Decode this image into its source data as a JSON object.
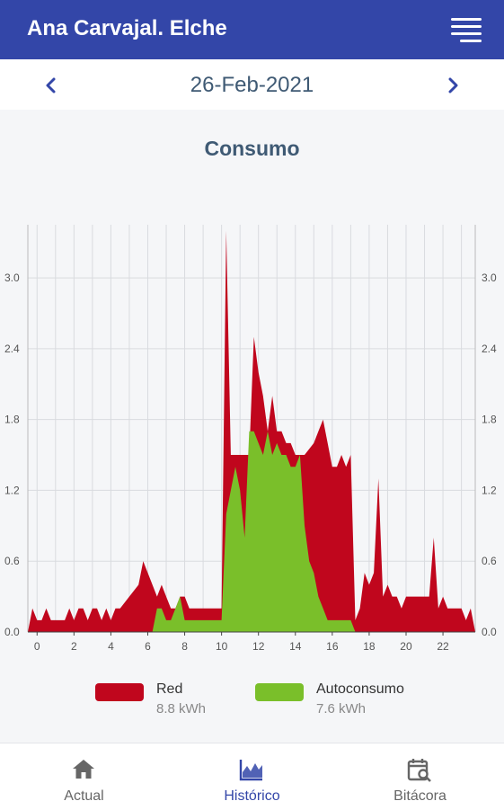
{
  "header": {
    "title": "Ana Carvajal. Elche",
    "menu_icon": "hamburger-menu-icon"
  },
  "date_nav": {
    "date": "26-Feb-2021",
    "prev_icon": "chevron-left-icon",
    "next_icon": "chevron-right-icon",
    "accent": "#3346a8"
  },
  "chart_data": {
    "type": "area",
    "title": "Consumo",
    "x_ticks": [
      "0",
      "2",
      "4",
      "6",
      "8",
      "10",
      "12",
      "14",
      "16",
      "18",
      "20",
      "22"
    ],
    "y_ticks": [
      "0.0",
      "0.6",
      "1.2",
      "1.8",
      "2.4",
      "3.0"
    ],
    "xlim": [
      -0.5,
      23.75
    ],
    "ylim": [
      0,
      3.45
    ],
    "grid": true,
    "legend_position": "bottom",
    "series": [
      {
        "name": "Red",
        "color": "#c0061d",
        "total": "8.8 kWh",
        "points": [
          [
            -0.5,
            0
          ],
          [
            -0.25,
            0.2
          ],
          [
            0,
            0.1
          ],
          [
            0.25,
            0.1
          ],
          [
            0.5,
            0.2
          ],
          [
            0.75,
            0.1
          ],
          [
            1,
            0.1
          ],
          [
            1.5,
            0.1
          ],
          [
            1.75,
            0.2
          ],
          [
            2,
            0.1
          ],
          [
            2.25,
            0.2
          ],
          [
            2.5,
            0.2
          ],
          [
            2.75,
            0.1
          ],
          [
            3,
            0.2
          ],
          [
            3.25,
            0.2
          ],
          [
            3.5,
            0.1
          ],
          [
            3.75,
            0.2
          ],
          [
            4,
            0.1
          ],
          [
            4.25,
            0.2
          ],
          [
            4.5,
            0.2
          ],
          [
            5,
            0.3
          ],
          [
            5.5,
            0.4
          ],
          [
            5.75,
            0.6
          ],
          [
            6,
            0.5
          ],
          [
            6.5,
            0.3
          ],
          [
            6.75,
            0.4
          ],
          [
            7,
            0.3
          ],
          [
            7.25,
            0.2
          ],
          [
            7.5,
            0.2
          ],
          [
            7.75,
            0.3
          ],
          [
            8,
            0.3
          ],
          [
            8.25,
            0.2
          ],
          [
            9,
            0.2
          ],
          [
            9.5,
            0.2
          ],
          [
            10,
            0.2
          ],
          [
            10.25,
            3.4
          ],
          [
            10.5,
            1.5
          ],
          [
            11,
            1.5
          ],
          [
            11.25,
            1.5
          ],
          [
            11.5,
            1.5
          ],
          [
            11.75,
            2.5
          ],
          [
            12,
            2.2
          ],
          [
            12.25,
            2.0
          ],
          [
            12.5,
            1.7
          ],
          [
            12.75,
            2.0
          ],
          [
            13,
            1.7
          ],
          [
            13.25,
            1.7
          ],
          [
            13.5,
            1.6
          ],
          [
            13.75,
            1.6
          ],
          [
            14,
            1.5
          ],
          [
            14.5,
            1.5
          ],
          [
            15,
            1.6
          ],
          [
            15.25,
            1.7
          ],
          [
            15.5,
            1.8
          ],
          [
            15.75,
            1.6
          ],
          [
            16,
            1.4
          ],
          [
            16.25,
            1.4
          ],
          [
            16.5,
            1.5
          ],
          [
            16.75,
            1.4
          ],
          [
            17,
            1.5
          ],
          [
            17.25,
            0.1
          ],
          [
            17.5,
            0.2
          ],
          [
            17.75,
            0.5
          ],
          [
            18,
            0.4
          ],
          [
            18.25,
            0.5
          ],
          [
            18.5,
            1.3
          ],
          [
            18.75,
            0.3
          ],
          [
            19,
            0.4
          ],
          [
            19.25,
            0.3
          ],
          [
            19.5,
            0.3
          ],
          [
            19.75,
            0.2
          ],
          [
            20,
            0.3
          ],
          [
            20.5,
            0.3
          ],
          [
            21,
            0.3
          ],
          [
            21.25,
            0.3
          ],
          [
            21.5,
            0.8
          ],
          [
            21.75,
            0.2
          ],
          [
            22,
            0.3
          ],
          [
            22.25,
            0.2
          ],
          [
            22.5,
            0.2
          ],
          [
            23,
            0.2
          ],
          [
            23.25,
            0.1
          ],
          [
            23.5,
            0.2
          ],
          [
            23.75,
            0
          ]
        ]
      },
      {
        "name": "Autoconsumo",
        "color": "#7abf2a",
        "total": "7.6 kWh",
        "points": [
          [
            6.25,
            0
          ],
          [
            6.5,
            0.2
          ],
          [
            6.75,
            0.2
          ],
          [
            7,
            0.1
          ],
          [
            7.25,
            0.1
          ],
          [
            7.5,
            0.2
          ],
          [
            7.75,
            0.3
          ],
          [
            8,
            0.1
          ],
          [
            8.5,
            0.1
          ],
          [
            9,
            0.1
          ],
          [
            10,
            0.1
          ],
          [
            10.25,
            1.0
          ],
          [
            10.5,
            1.2
          ],
          [
            10.75,
            1.4
          ],
          [
            11,
            1.2
          ],
          [
            11.25,
            0.8
          ],
          [
            11.5,
            1.7
          ],
          [
            11.75,
            1.7
          ],
          [
            12,
            1.6
          ],
          [
            12.25,
            1.5
          ],
          [
            12.5,
            1.7
          ],
          [
            12.75,
            1.5
          ],
          [
            13,
            1.6
          ],
          [
            13.25,
            1.5
          ],
          [
            13.5,
            1.5
          ],
          [
            13.75,
            1.4
          ],
          [
            14,
            1.4
          ],
          [
            14.25,
            1.5
          ],
          [
            14.5,
            0.9
          ],
          [
            14.75,
            0.6
          ],
          [
            15,
            0.5
          ],
          [
            15.25,
            0.3
          ],
          [
            15.5,
            0.2
          ],
          [
            15.75,
            0.1
          ],
          [
            16.5,
            0.1
          ],
          [
            17,
            0.1
          ],
          [
            17.25,
            0
          ]
        ]
      }
    ]
  },
  "legend": [
    {
      "name": "Red",
      "value": "8.8 kWh",
      "color": "#c0061d"
    },
    {
      "name": "Autoconsumo",
      "value": "7.6 kWh",
      "color": "#7abf2a"
    }
  ],
  "bottom_nav": {
    "items": [
      {
        "label": "Actual",
        "icon": "home-icon",
        "active": false
      },
      {
        "label": "Histórico",
        "icon": "chart-icon",
        "active": true
      },
      {
        "label": "Bitácora",
        "icon": "calendar-search-icon",
        "active": false
      }
    ],
    "active_color": "#3346a8",
    "inactive_color": "#666666"
  }
}
